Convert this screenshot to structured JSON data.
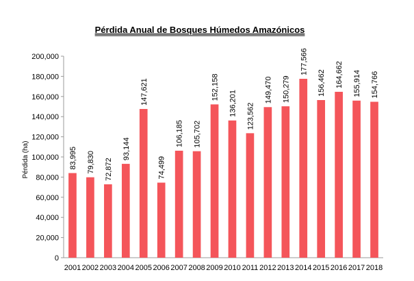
{
  "chart_data": {
    "type": "bar",
    "title": "Pérdida Anual de Bosques Húmedos Amazónicos",
    "xlabel": "",
    "ylabel": "Pérdida (ha)",
    "ylim": [
      0,
      200000
    ],
    "yticks": [
      "0",
      "20,000",
      "40,000",
      "60,000",
      "80,000",
      "100,000",
      "120,000",
      "140,000",
      "160,000",
      "180,000",
      "200,000"
    ],
    "grid": false,
    "legend": "none",
    "bar_color": "#f4555a",
    "categories": [
      "2001",
      "2002",
      "2003",
      "2004",
      "2005",
      "2006",
      "2007",
      "2008",
      "2009",
      "2010",
      "2011",
      "2012",
      "2013",
      "2014",
      "2015",
      "2016",
      "2017",
      "2018"
    ],
    "values": [
      83995,
      79830,
      72872,
      93144,
      147621,
      74499,
      106185,
      105702,
      152158,
      136201,
      123562,
      149470,
      150279,
      177566,
      156462,
      164662,
      155914,
      154766
    ],
    "value_labels": [
      "83,995",
      "79,830",
      "72,872",
      "93,144",
      "147,621",
      "74,499",
      "106,185",
      "105,702",
      "152,158",
      "136,201",
      "123,562",
      "149,470",
      "150,279",
      "177,566",
      "156,462",
      "164,662",
      "155,914",
      "154,766"
    ]
  }
}
